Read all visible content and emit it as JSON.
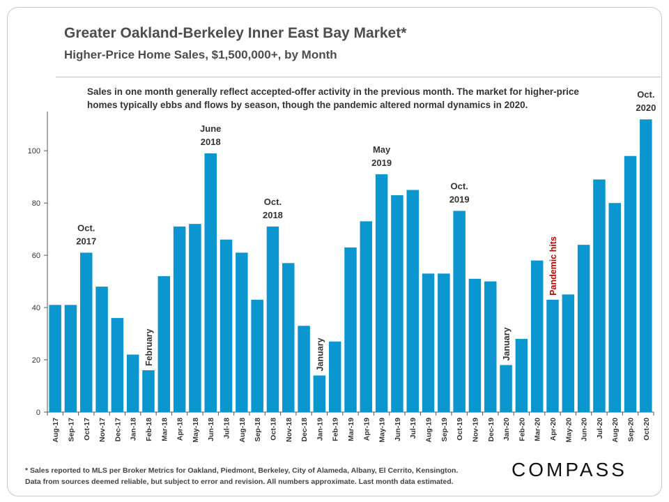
{
  "chart_data": {
    "type": "bar",
    "title": "Greater Oakland-Berkeley Inner East Bay Market*",
    "subtitle": "Higher-Price  Home Sales, $1,500,000+, by Month",
    "note": "Sales in one month generally reflect accepted-offer activity in the previous month. The market for higher-price homes typically ebbs and flows by season, though the pandemic altered normal dynamics in 2020.",
    "categories": [
      "Aug-17",
      "Sep-17",
      "Oct-17",
      "Nov-17",
      "Dec-17",
      "Jan-18",
      "Feb-18",
      "Mar-18",
      "Apr-18",
      "May-18",
      "Jun-18",
      "Jul-18",
      "Aug-18",
      "Sep-18",
      "Oct-18",
      "Nov-18",
      "Dec-18",
      "Jan-19",
      "Feb-19",
      "Mar-19",
      "Apr-19",
      "May-19",
      "Jun-19",
      "Jul-19",
      "Aug-19",
      "Sep-19",
      "Oct-19",
      "Nov-19",
      "Dec-19",
      "Jan-20",
      "Feb-20",
      "Mar-20",
      "Apr-20",
      "May-20",
      "Jun-20",
      "Jul-20",
      "Aug-20",
      "Sep-20",
      "Oct-20"
    ],
    "values": [
      41,
      41,
      61,
      48,
      36,
      22,
      16,
      52,
      71,
      72,
      99,
      66,
      61,
      43,
      71,
      57,
      33,
      14,
      27,
      63,
      73,
      91,
      83,
      85,
      53,
      53,
      77,
      51,
      50,
      18,
      28,
      58,
      43,
      45,
      64,
      89,
      80,
      98,
      112
    ],
    "ylim": [
      0,
      115
    ],
    "yticks": [
      0,
      20,
      40,
      60,
      80,
      100
    ],
    "bar_color": "#0b96cf",
    "grid": false,
    "annotations": [
      {
        "index": 2,
        "lines": [
          "Oct.",
          "2017"
        ],
        "orient": "horizontal",
        "color": "#333333"
      },
      {
        "index": 6,
        "lines": [
          "February"
        ],
        "orient": "vertical",
        "color": "#333333"
      },
      {
        "index": 10,
        "lines": [
          "June",
          "2018"
        ],
        "orient": "horizontal",
        "color": "#333333"
      },
      {
        "index": 14,
        "lines": [
          "Oct.",
          "2018"
        ],
        "orient": "horizontal",
        "color": "#333333"
      },
      {
        "index": 17,
        "lines": [
          "January"
        ],
        "orient": "vertical",
        "color": "#333333"
      },
      {
        "index": 21,
        "lines": [
          "May",
          "2019"
        ],
        "orient": "horizontal",
        "color": "#333333"
      },
      {
        "index": 26,
        "lines": [
          "Oct.",
          "2019"
        ],
        "orient": "horizontal",
        "color": "#333333"
      },
      {
        "index": 29,
        "lines": [
          "January"
        ],
        "orient": "vertical",
        "color": "#333333"
      },
      {
        "index": 32,
        "lines": [
          "Pandemic hits"
        ],
        "orient": "vertical",
        "color": "#c00000"
      },
      {
        "index": 38,
        "lines": [
          "Oct.",
          "2020"
        ],
        "orient": "horizontal",
        "color": "#333333"
      }
    ]
  },
  "footnote": {
    "line1": "* Sales reported to MLS per Broker Metrics for Oakland, Piedmont, Berkeley, City of Alameda, Albany, El Cerrito, Kensington.",
    "line2": "Data from sources deemed reliable, but subject to error and revision. All numbers approximate. Last month data estimated."
  },
  "logo": "COMPASS"
}
